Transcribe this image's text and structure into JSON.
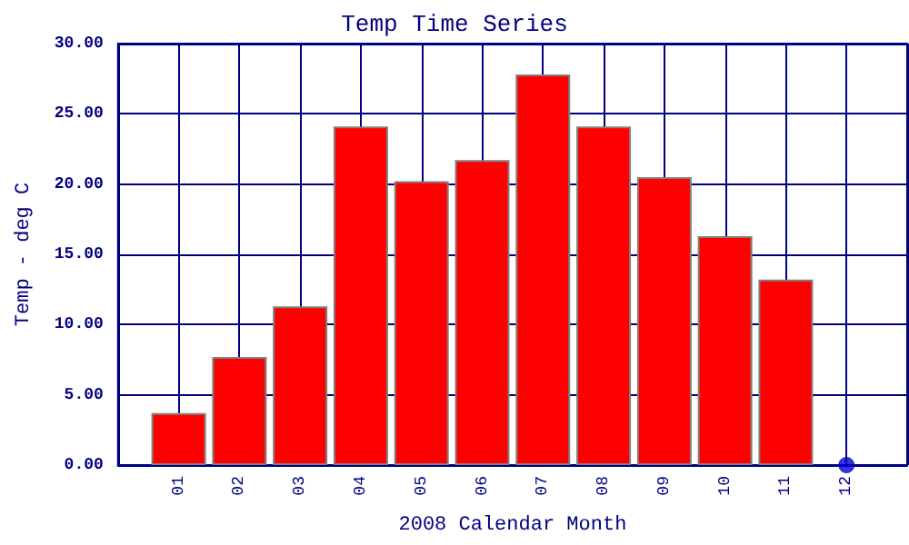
{
  "chart_data": {
    "type": "bar",
    "title": "Temp Time Series",
    "xlabel": "2008 Calendar Month",
    "ylabel": "Temp - deg C",
    "categories": [
      "01",
      "02",
      "03",
      "04",
      "05",
      "06",
      "07",
      "08",
      "09",
      "10",
      "11",
      "12"
    ],
    "series": [
      {
        "color": "#ff0000",
        "values": [
          3.7,
          7.7,
          11.3,
          24.1,
          20.2,
          21.7,
          27.8,
          24.1,
          20.5,
          16.3,
          13.2,
          null
        ]
      },
      {
        "type": "scatter",
        "color": "#0000cc",
        "x": [
          "12"
        ],
        "values": [
          0
        ]
      }
    ],
    "ylim": [
      0,
      30
    ],
    "yticks": [
      {
        "value": 0,
        "label": "0.00"
      },
      {
        "value": 5,
        "label": "5.00"
      },
      {
        "value": 10,
        "label": "10.00"
      },
      {
        "value": 15,
        "label": "15.00"
      },
      {
        "value": 20,
        "label": "20.00"
      },
      {
        "value": 25,
        "label": "25.00"
      },
      {
        "value": 30,
        "label": "30.00"
      }
    ],
    "grid": true,
    "marker": "circle"
  }
}
